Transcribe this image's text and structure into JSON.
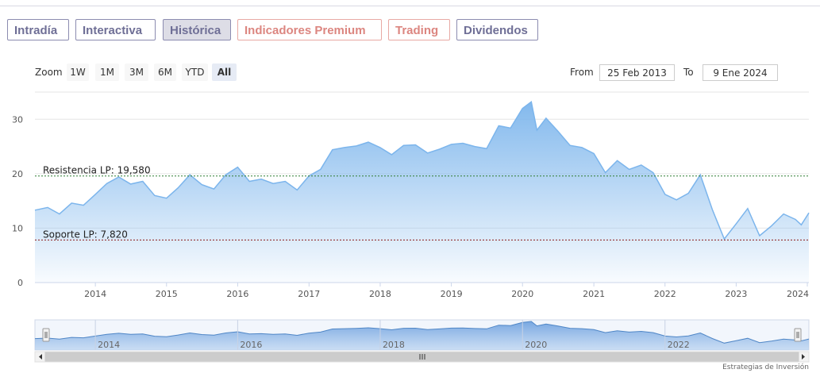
{
  "tabs": [
    {
      "label": "Intradía",
      "style": "normal"
    },
    {
      "label": "Interactiva",
      "style": "normal"
    },
    {
      "label": "Histórica",
      "style": "active"
    },
    {
      "label": "Indicadores Premium",
      "style": "premium"
    },
    {
      "label": "Trading",
      "style": "premium"
    },
    {
      "label": "Dividendos",
      "style": "normal"
    }
  ],
  "zoom": {
    "label": "Zoom",
    "buttons": [
      "1W",
      "1M",
      "3M",
      "6M",
      "YTD",
      "All"
    ],
    "selected": "All"
  },
  "range": {
    "from_label": "From",
    "from_value": "25 Feb 2013",
    "to_label": "To",
    "to_value": "9 Ene 2024"
  },
  "credit": "Estrategias de Inversión",
  "colors": {
    "line": "#7cb5ec",
    "resistance": "#2e7d32",
    "support": "#8b1a1a",
    "tab_border": "#8c8cb0",
    "premium": "#dc8680"
  },
  "chart_data": {
    "type": "area",
    "title": "",
    "xlabel": "",
    "ylabel": "",
    "x_range": [
      "2013-02-25",
      "2024-01-09"
    ],
    "ylim": [
      0,
      35
    ],
    "y_ticks": [
      0,
      10,
      20,
      30
    ],
    "x_tick_labels": [
      "2014",
      "2015",
      "2016",
      "2017",
      "2018",
      "2019",
      "2020",
      "2021",
      "2022",
      "2023",
      "2024"
    ],
    "grid": true,
    "legend": "none",
    "series": [
      {
        "points": [
          [
            "2013-02-25",
            13.3
          ],
          [
            "2013-05-01",
            13.8
          ],
          [
            "2013-07-01",
            12.6
          ],
          [
            "2013-09-01",
            14.6
          ],
          [
            "2013-11-01",
            14.2
          ],
          [
            "2014-01-01",
            16.2
          ],
          [
            "2014-03-01",
            18.2
          ],
          [
            "2014-05-01",
            19.4
          ],
          [
            "2014-07-01",
            18.1
          ],
          [
            "2014-09-01",
            18.6
          ],
          [
            "2014-11-01",
            16.0
          ],
          [
            "2015-01-01",
            15.5
          ],
          [
            "2015-03-01",
            17.4
          ],
          [
            "2015-05-01",
            19.8
          ],
          [
            "2015-07-01",
            18.0
          ],
          [
            "2015-09-01",
            17.2
          ],
          [
            "2015-11-01",
            19.8
          ],
          [
            "2016-01-01",
            21.2
          ],
          [
            "2016-03-01",
            18.6
          ],
          [
            "2016-05-01",
            19.0
          ],
          [
            "2016-07-01",
            18.2
          ],
          [
            "2016-09-01",
            18.6
          ],
          [
            "2016-11-01",
            17.0
          ],
          [
            "2017-01-01",
            19.6
          ],
          [
            "2017-03-01",
            20.8
          ],
          [
            "2017-05-01",
            24.4
          ],
          [
            "2017-07-01",
            24.8
          ],
          [
            "2017-09-01",
            25.1
          ],
          [
            "2017-11-01",
            25.8
          ],
          [
            "2018-01-01",
            24.8
          ],
          [
            "2018-03-01",
            23.5
          ],
          [
            "2018-05-01",
            25.2
          ],
          [
            "2018-07-01",
            25.3
          ],
          [
            "2018-09-01",
            23.8
          ],
          [
            "2018-11-01",
            24.5
          ],
          [
            "2019-01-01",
            25.4
          ],
          [
            "2019-03-01",
            25.6
          ],
          [
            "2019-05-01",
            25.0
          ],
          [
            "2019-07-01",
            24.6
          ],
          [
            "2019-09-01",
            28.8
          ],
          [
            "2019-11-01",
            28.4
          ],
          [
            "2020-01-01",
            32.0
          ],
          [
            "2020-02-15",
            33.2
          ],
          [
            "2020-03-15",
            28.0
          ],
          [
            "2020-05-01",
            30.2
          ],
          [
            "2020-07-01",
            27.8
          ],
          [
            "2020-09-01",
            25.2
          ],
          [
            "2020-11-01",
            24.8
          ],
          [
            "2021-01-01",
            23.7
          ],
          [
            "2021-03-01",
            20.2
          ],
          [
            "2021-05-01",
            22.4
          ],
          [
            "2021-07-01",
            20.8
          ],
          [
            "2021-09-01",
            21.6
          ],
          [
            "2021-11-01",
            20.2
          ],
          [
            "2022-01-01",
            16.2
          ],
          [
            "2022-03-01",
            15.2
          ],
          [
            "2022-05-01",
            16.4
          ],
          [
            "2022-07-01",
            19.8
          ],
          [
            "2022-09-01",
            13.4
          ],
          [
            "2022-11-01",
            8.0
          ],
          [
            "2023-01-01",
            10.8
          ],
          [
            "2023-03-01",
            13.6
          ],
          [
            "2023-05-01",
            8.6
          ],
          [
            "2023-07-01",
            10.4
          ],
          [
            "2023-09-01",
            12.6
          ],
          [
            "2023-11-01",
            11.6
          ],
          [
            "2023-12-01",
            10.6
          ],
          [
            "2024-01-09",
            12.8
          ]
        ]
      }
    ],
    "annotations": [
      {
        "label": "Resistencia LP: 19,580",
        "y": 19.58
      },
      {
        "label": "Soporte LP: 7,820",
        "y": 7.82
      }
    ],
    "navigator": {
      "tick_labels": [
        "2014",
        "2016",
        "2018",
        "2020",
        "2022"
      ]
    }
  }
}
